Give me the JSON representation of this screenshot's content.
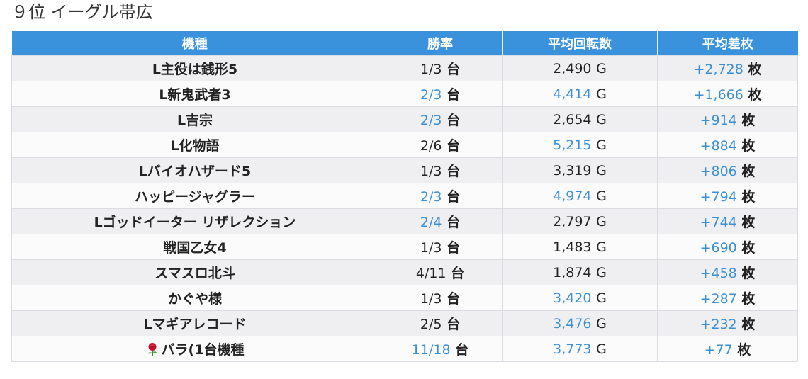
{
  "page": {
    "title": "９位 イーグル帯広"
  },
  "colors": {
    "header_bg": "#3a91dc",
    "link_blue": "#3a8fd9",
    "row_alt": "#efeff1"
  },
  "table": {
    "headers": [
      "機種",
      "勝率",
      "平均回転数",
      "平均差枚"
    ],
    "rows": [
      {
        "machine": "L主役は銭形5",
        "win": "1/3",
        "win_highlight": false,
        "win_unit": "台",
        "spins": "2,490",
        "spins_highlight": false,
        "spins_unit": "G",
        "diff": "+2,728",
        "diff_unit": "枚"
      },
      {
        "machine": "L新鬼武者3",
        "win": "2/3",
        "win_highlight": true,
        "win_unit": "台",
        "spins": "4,414",
        "spins_highlight": true,
        "spins_unit": "G",
        "diff": "+1,666",
        "diff_unit": "枚"
      },
      {
        "machine": "L吉宗",
        "win": "2/3",
        "win_highlight": true,
        "win_unit": "台",
        "spins": "2,654",
        "spins_highlight": false,
        "spins_unit": "G",
        "diff": "+914",
        "diff_unit": "枚"
      },
      {
        "machine": "L化物語",
        "win": "2/6",
        "win_highlight": false,
        "win_unit": "台",
        "spins": "5,215",
        "spins_highlight": true,
        "spins_unit": "G",
        "diff": "+884",
        "diff_unit": "枚"
      },
      {
        "machine": "Lバイオハザード5",
        "win": "1/3",
        "win_highlight": false,
        "win_unit": "台",
        "spins": "3,319",
        "spins_highlight": false,
        "spins_unit": "G",
        "diff": "+806",
        "diff_unit": "枚"
      },
      {
        "machine": "ハッピージャグラー",
        "win": "2/3",
        "win_highlight": true,
        "win_unit": "台",
        "spins": "4,974",
        "spins_highlight": true,
        "spins_unit": "G",
        "diff": "+794",
        "diff_unit": "枚"
      },
      {
        "machine": "Lゴッドイーター リザレクション",
        "win": "2/4",
        "win_highlight": true,
        "win_unit": "台",
        "spins": "2,797",
        "spins_highlight": false,
        "spins_unit": "G",
        "diff": "+744",
        "diff_unit": "枚"
      },
      {
        "machine": "戦国乙女4",
        "win": "1/3",
        "win_highlight": false,
        "win_unit": "台",
        "spins": "1,483",
        "spins_highlight": false,
        "spins_unit": "G",
        "diff": "+690",
        "diff_unit": "枚"
      },
      {
        "machine": "スマスロ北斗",
        "win": "4/11",
        "win_highlight": false,
        "win_unit": "台",
        "spins": "1,874",
        "spins_highlight": false,
        "spins_unit": "G",
        "diff": "+458",
        "diff_unit": "枚"
      },
      {
        "machine": "かぐや様",
        "win": "1/3",
        "win_highlight": false,
        "win_unit": "台",
        "spins": "3,420",
        "spins_highlight": true,
        "spins_unit": "G",
        "diff": "+287",
        "diff_unit": "枚"
      },
      {
        "machine": "Lマギアレコード",
        "win": "2/5",
        "win_highlight": false,
        "win_unit": "台",
        "spins": "3,476",
        "spins_highlight": true,
        "spins_unit": "G",
        "diff": "+232",
        "diff_unit": "枚"
      },
      {
        "machine": "バラ(1台機種",
        "machine_icon": "rose-icon",
        "win": "11/18",
        "win_highlight": true,
        "win_unit": "台",
        "spins": "3,773",
        "spins_highlight": true,
        "spins_unit": "G",
        "diff": "+77",
        "diff_unit": "枚"
      }
    ]
  }
}
